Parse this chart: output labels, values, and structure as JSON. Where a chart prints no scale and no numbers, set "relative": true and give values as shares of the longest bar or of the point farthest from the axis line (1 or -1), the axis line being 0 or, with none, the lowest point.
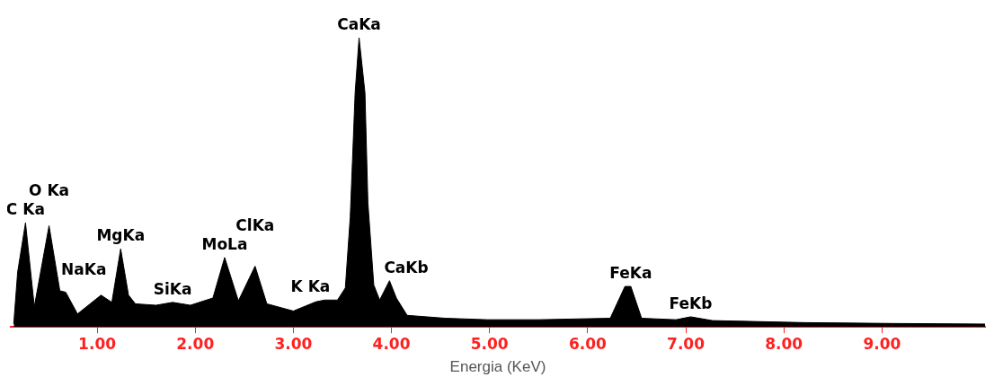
{
  "chart_data": {
    "type": "area",
    "relative": true,
    "xlabel": "Energia (KeV)",
    "x": [
      0.15,
      0.19,
      0.27,
      0.36,
      0.51,
      0.62,
      0.68,
      0.8,
      1.04,
      1.15,
      1.24,
      1.32,
      1.39,
      1.6,
      1.77,
      1.95,
      2.18,
      2.3,
      2.44,
      2.61,
      2.73,
      3.0,
      3.23,
      3.32,
      3.45,
      3.53,
      3.58,
      3.63,
      3.67,
      3.73,
      3.76,
      3.82,
      3.88,
      3.98,
      4.05,
      4.16,
      4.55,
      4.98,
      5.5,
      6.23,
      6.38,
      6.44,
      6.55,
      6.9,
      7.05,
      7.27,
      8.2,
      9.1,
      10.05
    ],
    "series": [
      {
        "color": "#000000",
        "values": [
          0.01,
          0.19,
          0.36,
          0.07,
          0.35,
          0.125,
          0.12,
          0.045,
          0.11,
          0.085,
          0.27,
          0.11,
          0.08,
          0.075,
          0.085,
          0.075,
          0.1,
          0.24,
          0.09,
          0.21,
          0.08,
          0.055,
          0.087,
          0.093,
          0.093,
          0.135,
          0.38,
          0.81,
          1.0,
          0.81,
          0.43,
          0.145,
          0.093,
          0.16,
          0.1,
          0.04,
          0.03,
          0.025,
          0.025,
          0.03,
          0.14,
          0.14,
          0.03,
          0.025,
          0.035,
          0.022,
          0.015,
          0.012,
          0.01
        ]
      }
    ],
    "xlim": [
      0.12,
      10.05
    ],
    "xticks": [
      {
        "value": 1,
        "label": "1.00"
      },
      {
        "value": 2,
        "label": "2.00"
      },
      {
        "value": 3,
        "label": "3.00"
      },
      {
        "value": 4,
        "label": "4.00"
      },
      {
        "value": 5,
        "label": "5.00"
      },
      {
        "value": 6,
        "label": "6.00"
      },
      {
        "value": 7,
        "label": "7.00"
      },
      {
        "value": 8,
        "label": "8.00"
      },
      {
        "value": 9,
        "label": "9.00"
      }
    ],
    "annotations": [
      {
        "text": "C Ka",
        "x": 0.27,
        "y": 0.36
      },
      {
        "text": "O Ka",
        "x": 0.51,
        "y": 0.35
      },
      {
        "text": "NaKa",
        "x": 1.04,
        "y": 0.11
      },
      {
        "text": "MgKa",
        "x": 1.24,
        "y": 0.27
      },
      {
        "text": "SiKa",
        "x": 1.77,
        "y": 0.085
      },
      {
        "text": "MoLa",
        "x": 2.3,
        "y": 0.24
      },
      {
        "text": "ClKa",
        "x": 2.61,
        "y": 0.21
      },
      {
        "text": "K Ka",
        "x": 3.32,
        "y": 0.093
      },
      {
        "text": "CaKa",
        "x": 3.67,
        "y": 1.0
      },
      {
        "text": "CaKb",
        "x": 3.98,
        "y": 0.16
      },
      {
        "text": "FeKa",
        "x": 6.44,
        "y": 0.14
      },
      {
        "text": "FeKb",
        "x": 7.05,
        "y": 0.035
      }
    ]
  }
}
